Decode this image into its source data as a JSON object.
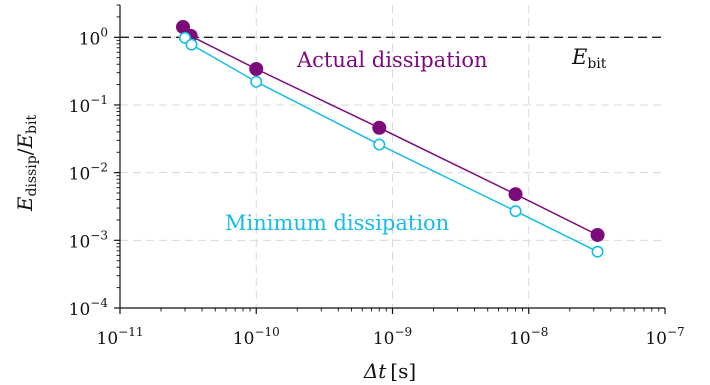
{
  "chart_data": {
    "type": "scatter",
    "xscale": "log",
    "yscale": "log",
    "xlim": [
      1e-11,
      1e-07
    ],
    "ylim": [
      0.0001,
      3
    ],
    "grid": true,
    "xlabel": {
      "main": "Δt",
      "unit": "[s]"
    },
    "ylabel": {
      "main": "E",
      "main_sub": "dissip",
      "slash": "/",
      "denom": "E",
      "denom_sub": "bit"
    },
    "xticks": [
      {
        "value": 1e-11,
        "base": "10",
        "exp": "−11"
      },
      {
        "value": 1e-10,
        "base": "10",
        "exp": "−10"
      },
      {
        "value": 1e-09,
        "base": "10",
        "exp": "−9"
      },
      {
        "value": 1e-08,
        "base": "10",
        "exp": "−8"
      },
      {
        "value": 1e-07,
        "base": "10",
        "exp": "−7"
      }
    ],
    "yticks": [
      {
        "value": 1,
        "base": "10",
        "exp": "0"
      },
      {
        "value": 0.1,
        "base": "10",
        "exp": "−1"
      },
      {
        "value": 0.01,
        "base": "10",
        "exp": "−2"
      },
      {
        "value": 0.001,
        "base": "10",
        "exp": "−3"
      },
      {
        "value": 0.0001,
        "base": "10",
        "exp": "−4"
      }
    ],
    "series": [
      {
        "name": "Actual dissipation",
        "color": "#7b0a7b",
        "marker": "filled-circle",
        "x": [
          2.9e-11,
          3.3e-11,
          1e-10,
          8e-10,
          8e-09,
          3.2e-08
        ],
        "y": [
          1.42,
          1.05,
          0.34,
          0.046,
          0.0048,
          0.0012
        ]
      },
      {
        "name": "Minimum dissipation",
        "color": "#14bde6",
        "marker": "open-circle",
        "x": [
          3e-11,
          3.35e-11,
          1e-10,
          8e-10,
          8e-09,
          3.2e-08
        ],
        "y": [
          0.98,
          0.78,
          0.22,
          0.026,
          0.0027,
          0.00068
        ]
      }
    ],
    "reference_line": {
      "y": 1,
      "style": "dashed",
      "color": "#222222",
      "label": {
        "main": "E",
        "sub": "bit"
      }
    },
    "annotations": [
      {
        "text": "Actual dissipation",
        "color": "#7b0a7b"
      },
      {
        "text": "Minimum dissipation",
        "color": "#14bde6"
      }
    ]
  }
}
